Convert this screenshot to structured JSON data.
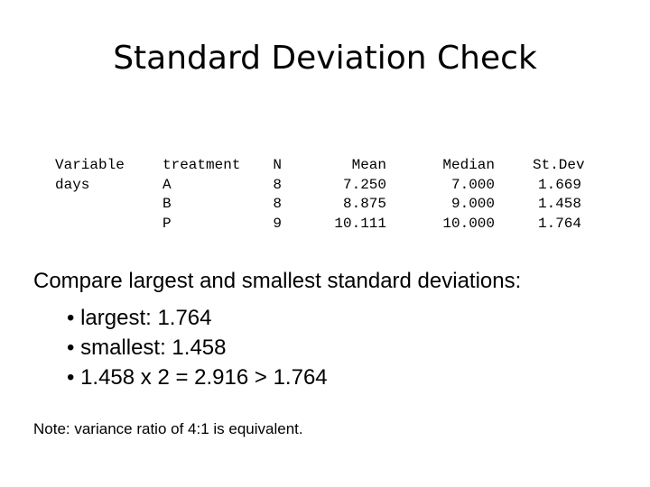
{
  "title": "Standard Deviation Check",
  "table": {
    "variable_header": "Variable",
    "variable_value": "days",
    "columns": [
      "treatment",
      "N",
      "Mean",
      "Median",
      "St.Dev"
    ],
    "rows": [
      [
        "A",
        "8",
        "7.250",
        "7.000",
        "1.669"
      ],
      [
        "B",
        "8",
        "8.875",
        "9.000",
        "1.458"
      ],
      [
        "P",
        "9",
        "10.111",
        "10.000",
        "1.764"
      ]
    ]
  },
  "compare": {
    "heading": "Compare largest and smallest standard deviations:",
    "bullets": [
      "• largest: 1.764",
      "• smallest: 1.458",
      "• 1.458 x 2 = 2.916 > 1.764"
    ]
  },
  "note": "Note: variance ratio of 4:1 is equivalent."
}
